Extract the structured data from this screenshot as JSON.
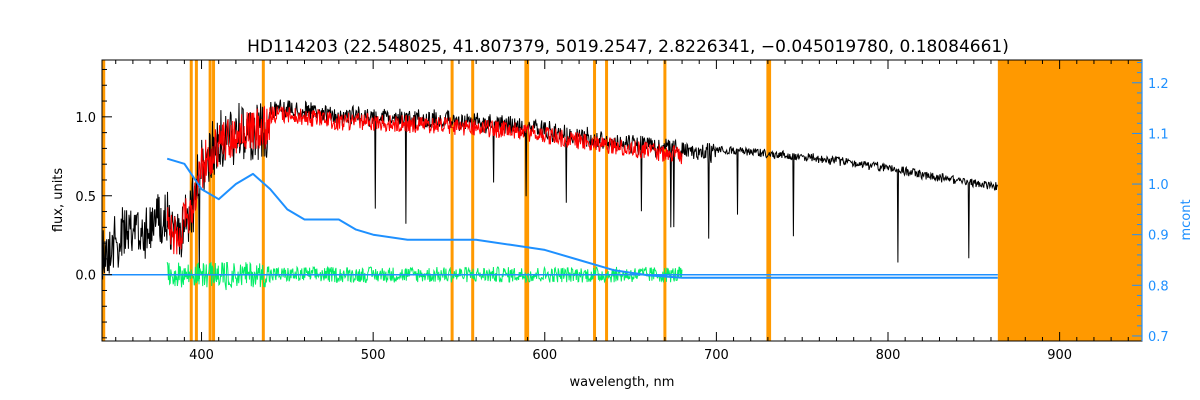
{
  "chart_data": {
    "type": "line",
    "title": "HD114203   (22.548025, 41.807379, 5019.2547, 2.8226341, −0.045019780, 0.18084661)",
    "xlabel": "wavelength, nm",
    "ylabel": "flux, units",
    "y2label": "mcont",
    "xlim": [
      342,
      948
    ],
    "ylim": [
      -0.42,
      1.36
    ],
    "y2lim": [
      0.69,
      1.245
    ],
    "xticks": [
      400,
      500,
      600,
      700,
      800,
      900
    ],
    "yticks": [
      0.0,
      0.5,
      1.0
    ],
    "y2ticks": [
      0.7,
      0.8,
      0.9,
      1.0,
      1.1,
      1.2
    ],
    "ytick_labels": [
      "0.0",
      "0.5",
      "1.0"
    ],
    "y2tick_labels": [
      "0.7",
      "0.8",
      "0.9",
      "1.0",
      "1.1",
      "1.2"
    ],
    "colors": {
      "observed": "#000000",
      "model": "#ff0000",
      "residual": "#00ee66",
      "continuum": "#1e90ff",
      "mask": "#ff9900"
    },
    "mask_lines": [
      343,
      394,
      397,
      405,
      407,
      436,
      546,
      558,
      589,
      590,
      629,
      636,
      670,
      730,
      731
    ],
    "mask_band": [
      864,
      948
    ],
    "observed_envelope": {
      "x": [
        342,
        350,
        360,
        370,
        380,
        385,
        390,
        395,
        400,
        410,
        420,
        430,
        440,
        450,
        460,
        470,
        480,
        490,
        500,
        520,
        540,
        560,
        580,
        600,
        620,
        640,
        660,
        680,
        700,
        720,
        740,
        760,
        780,
        800,
        820,
        840,
        864
      ],
      "y": [
        0.3,
        0.4,
        0.45,
        0.5,
        0.55,
        0.4,
        0.5,
        0.6,
        0.85,
        1.0,
        1.05,
        1.08,
        1.1,
        1.1,
        1.08,
        1.08,
        1.05,
        1.06,
        1.05,
        1.04,
        1.03,
        1.02,
        1.0,
        0.97,
        0.93,
        0.9,
        0.87,
        0.84,
        0.82,
        0.8,
        0.78,
        0.76,
        0.73,
        0.7,
        0.66,
        0.62,
        0.58
      ]
    },
    "model_range": [
      380,
      680
    ],
    "residual_range": [
      380,
      680
    ],
    "continuum": {
      "x": [
        380,
        390,
        400,
        410,
        420,
        430,
        440,
        450,
        460,
        470,
        480,
        490,
        500,
        520,
        540,
        560,
        580,
        600,
        620,
        640,
        660,
        680,
        864
      ],
      "y": [
        1.05,
        1.04,
        0.99,
        0.97,
        1.0,
        1.02,
        0.99,
        0.95,
        0.93,
        0.93,
        0.93,
        0.91,
        0.9,
        0.89,
        0.89,
        0.89,
        0.88,
        0.87,
        0.85,
        0.83,
        0.82,
        0.815,
        0.815
      ]
    }
  }
}
